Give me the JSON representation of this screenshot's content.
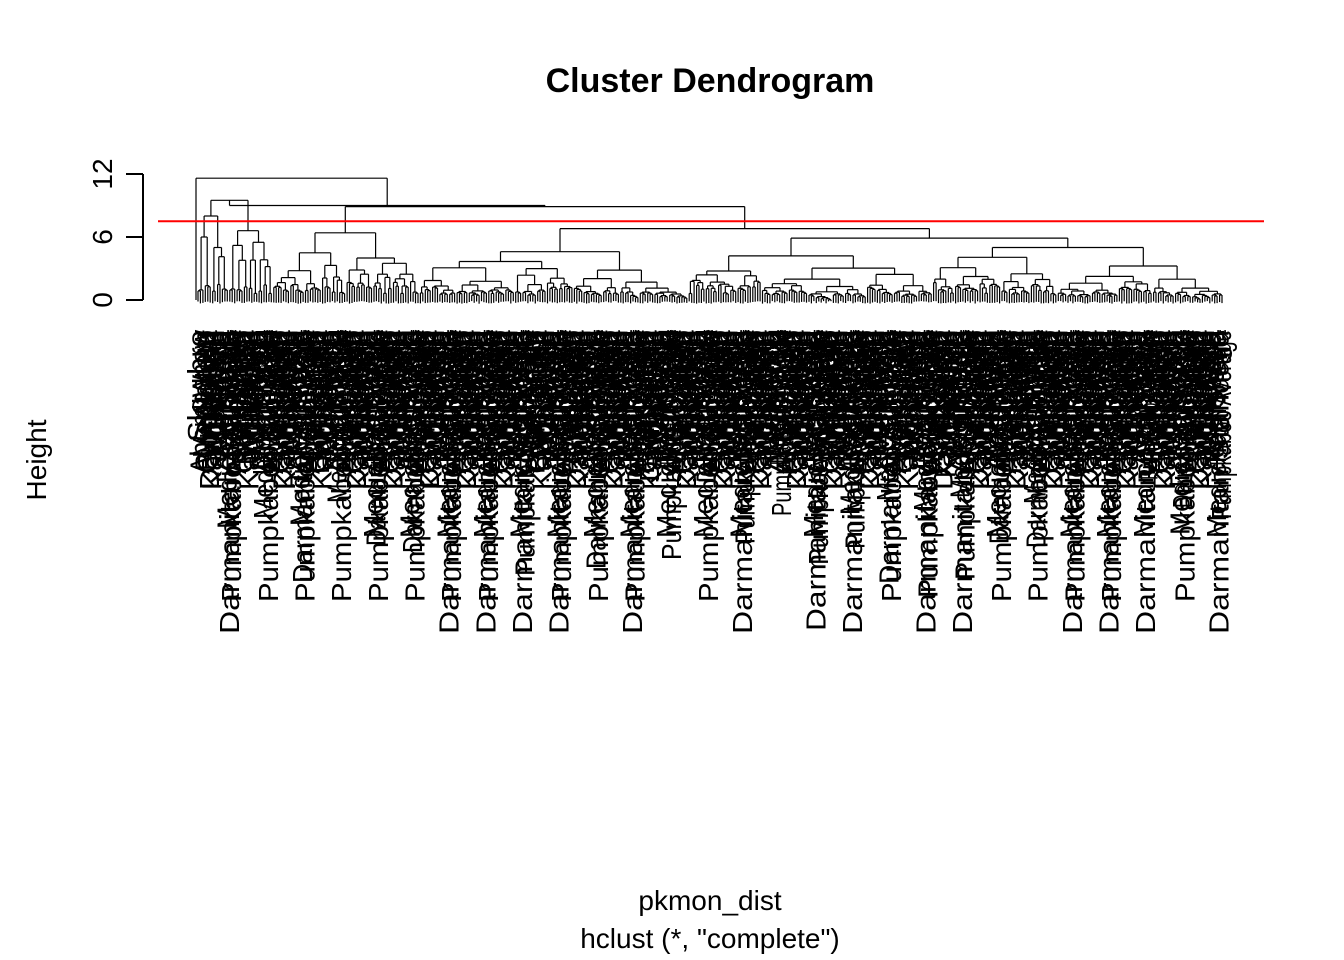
{
  "chart_data": {
    "type": "dendrogram",
    "title": "Cluster Dendrogram",
    "xlabel": "pkmon_dist",
    "sub": "hclust (*, \"complete\")",
    "ylabel": "Height",
    "yticks": [
      0,
      6,
      12
    ],
    "ylim": [
      0,
      13
    ],
    "cut_height": 7.5,
    "cut_color": "#ff0000",
    "line_color": "#000000",
    "leaf_count": 420,
    "top_merges": [
      {
        "height": 11.6,
        "left": "cluster A",
        "right": "cluster B"
      },
      {
        "height": 9.5,
        "left": "A.1",
        "right": "A.2"
      },
      {
        "height": 8.9,
        "left": "B.1",
        "right": "B.2"
      },
      {
        "height": 8.0,
        "left": "A.1.a",
        "right": "A.1.b"
      },
      {
        "height": 6.8,
        "left": "B.2.a",
        "right": "B.2.b"
      },
      {
        "height": 6.6,
        "left": "A.2.a",
        "right": "A.2.b"
      }
    ],
    "visible_leaf_labels": [
      "Slowbro",
      "Abomasnow",
      "Medicham",
      "Pumpkaboo",
      "Gourgeist",
      "Darmanitan",
      "Kangaskhan",
      "Wormadam",
      "Cherrim",
      "Meloetta",
      "Hoopa",
      "Aegislash",
      "Medicham Mega",
      "Darmanitan Standard",
      "Pumpkaboo Average"
    ]
  }
}
